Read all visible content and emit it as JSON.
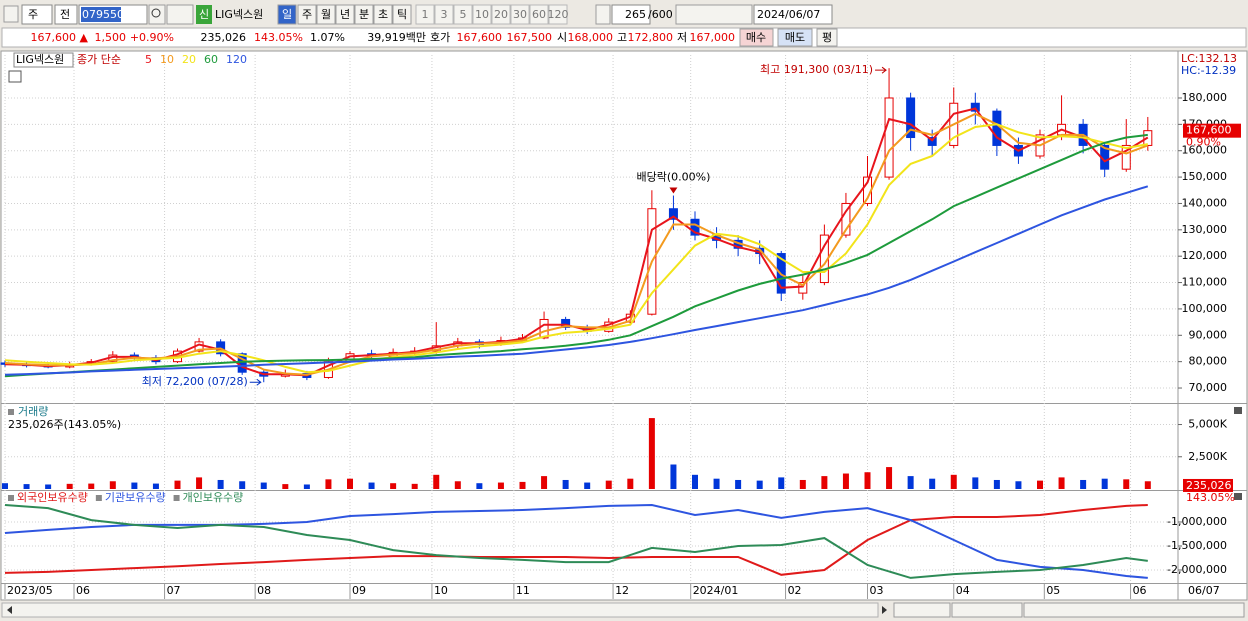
{
  "toolbar": {
    "period_type": "주",
    "prev": "전",
    "code": "079550",
    "new_badge": "신",
    "name": "LIG넥스원",
    "intervals": [
      "일",
      "주",
      "월",
      "년",
      "분",
      "초",
      "틱"
    ],
    "steps": [
      "1",
      "3",
      "5",
      "10",
      "20",
      "30",
      "60",
      "120"
    ],
    "count": "265",
    "max_count": "/600",
    "date": "2024/06/07"
  },
  "quote": {
    "price": "167,600 ▲",
    "change": "1,500",
    "change_pct": "+0.90%",
    "volume": "235,026",
    "volume_ratio": "143.05%",
    "turnover": "1.07%",
    "amount": "39,919백만",
    "bid_ask_label": "호가",
    "ask": "167,600",
    "bid": "167,500",
    "open_label": "시",
    "open": "168,000",
    "high_label": "고",
    "high": "172,800",
    "low_label": "저",
    "low": "167,000",
    "buy": "매수",
    "sell": "매도",
    "avg": "평"
  },
  "chart_data": [
    {
      "type": "candlestick",
      "title": "LIG넥스원",
      "legend_label": "종가 단순",
      "x": [
        0,
        5,
        10,
        15,
        20,
        25,
        30,
        35,
        40,
        45,
        50,
        55,
        60,
        65,
        70,
        75,
        80,
        85,
        90,
        95,
        100,
        105,
        110,
        115,
        120,
        125,
        130,
        135,
        140,
        145,
        150,
        155,
        160,
        165,
        170,
        175,
        180,
        185,
        190,
        195,
        200,
        205,
        210,
        215,
        220,
        225,
        230,
        235,
        240,
        245,
        250,
        255,
        260,
        265
      ],
      "open": [
        79500,
        79000,
        78500,
        78000,
        79000,
        80000,
        82500,
        81500,
        80000,
        84000,
        87500,
        83000,
        76000,
        74500,
        75500,
        74000,
        80000,
        83000,
        82000,
        83500,
        84000,
        86000,
        87500,
        86500,
        88000,
        89000,
        96000,
        93000,
        91500,
        95000,
        98000,
        138000,
        134000,
        128000,
        126000,
        123000,
        121000,
        106000,
        110000,
        128000,
        140000,
        150000,
        180000,
        165000,
        162000,
        178000,
        175000,
        162000,
        158000,
        166000,
        170000,
        162000,
        153000,
        162000
      ],
      "high": [
        80500,
        80000,
        79500,
        80000,
        81000,
        84000,
        83500,
        82500,
        85000,
        89000,
        88500,
        83500,
        77000,
        77000,
        76500,
        81500,
        84000,
        84500,
        85000,
        85500,
        95000,
        89000,
        88500,
        89500,
        90500,
        99000,
        97000,
        94000,
        96500,
        99500,
        145000,
        143000,
        137000,
        131000,
        128000,
        126000,
        122000,
        113000,
        132000,
        144000,
        158000,
        191300,
        182000,
        168000,
        184000,
        182000,
        176000,
        165000,
        168000,
        181000,
        172000,
        163000,
        172000,
        172800
      ],
      "low": [
        78000,
        77800,
        77500,
        77500,
        78500,
        79500,
        80500,
        79000,
        79500,
        83500,
        82000,
        75000,
        72200,
        74000,
        73000,
        73500,
        79500,
        81000,
        81500,
        82500,
        83000,
        85000,
        85000,
        86000,
        87500,
        88500,
        92000,
        90500,
        91000,
        94000,
        97500,
        130000,
        126000,
        123000,
        120000,
        117000,
        103000,
        103500,
        109000,
        127000,
        139000,
        149000,
        160000,
        158000,
        161000,
        170000,
        158000,
        155000,
        157000,
        164000,
        159000,
        150000,
        152000,
        160000
      ],
      "close": [
        79000,
        78500,
        78000,
        79000,
        80000,
        82500,
        81500,
        80000,
        84000,
        87500,
        83000,
        76000,
        74500,
        75500,
        74000,
        80000,
        83000,
        82000,
        83500,
        84000,
        86000,
        87500,
        86500,
        88000,
        89000,
        96000,
        93000,
        91500,
        95000,
        98000,
        138000,
        134000,
        128000,
        126000,
        123000,
        121000,
        106000,
        110000,
        128000,
        140000,
        150000,
        180000,
        165000,
        162000,
        178000,
        175000,
        162000,
        158000,
        166000,
        170000,
        162000,
        153000,
        162000,
        167600
      ],
      "up_color": "#e60000",
      "down_color": "#0036d9",
      "series": [
        {
          "name": "5",
          "color": "#e8141c",
          "values": [
            79000,
            78800,
            78300,
            78700,
            79600,
            81800,
            81800,
            80600,
            82800,
            86500,
            84500,
            78000,
            75200,
            75200,
            74800,
            78500,
            82000,
            82500,
            83000,
            83700,
            85500,
            87000,
            87000,
            87500,
            88700,
            94000,
            94000,
            92000,
            94000,
            97000,
            130000,
            135000,
            129000,
            126500,
            123500,
            121500,
            108000,
            108500,
            124000,
            137000,
            148000,
            172000,
            170000,
            164000,
            174000,
            176000,
            165000,
            160000,
            164000,
            168000,
            165000,
            156000,
            160000,
            165000
          ]
        },
        {
          "name": "10",
          "color": "#f39a1e",
          "values": [
            79500,
            79000,
            78700,
            78600,
            79000,
            80500,
            81500,
            81200,
            82000,
            84500,
            85000,
            81000,
            77000,
            75500,
            75000,
            77000,
            80000,
            82000,
            82700,
            83300,
            84500,
            86000,
            86800,
            87200,
            88000,
            91500,
            93500,
            93000,
            93000,
            95500,
            118000,
            132000,
            132000,
            128000,
            125000,
            122500,
            113000,
            109000,
            117000,
            130000,
            142000,
            160000,
            168000,
            166000,
            170000,
            174000,
            170000,
            163000,
            162000,
            166000,
            166000,
            161000,
            159000,
            162000
          ]
        },
        {
          "name": "20",
          "color": "#f2e41a",
          "values": [
            80500,
            80000,
            79500,
            79000,
            78900,
            79500,
            80500,
            81000,
            81500,
            83000,
            84000,
            82500,
            80500,
            78000,
            76000,
            76500,
            78500,
            80500,
            81800,
            82500,
            83500,
            84800,
            85800,
            86500,
            87300,
            89500,
            91000,
            91500,
            92500,
            94000,
            106000,
            115000,
            124000,
            128500,
            127500,
            124500,
            119000,
            114000,
            114000,
            121000,
            132000,
            147000,
            155000,
            158000,
            165000,
            169000,
            170000,
            167000,
            165000,
            165500,
            165000,
            163000,
            161000,
            162500
          ]
        },
        {
          "name": "60",
          "color": "#1e9b3c",
          "values": [
            74500,
            75000,
            75500,
            76000,
            76500,
            77000,
            77500,
            78000,
            78500,
            79000,
            79500,
            80000,
            80200,
            80400,
            80500,
            80600,
            80800,
            81000,
            81300,
            81700,
            82500,
            83000,
            83500,
            84000,
            84700,
            85300,
            86000,
            87000,
            88300,
            90000,
            93500,
            97000,
            101000,
            104000,
            107000,
            109500,
            111500,
            113000,
            115000,
            117500,
            120500,
            125000,
            129500,
            134000,
            139000,
            142500,
            146000,
            149500,
            153000,
            156500,
            160000,
            163000,
            165000,
            166000
          ]
        },
        {
          "name": "120",
          "color": "#2e55e0",
          "values": [
            75000,
            75300,
            75600,
            75900,
            76300,
            76600,
            76900,
            77200,
            77500,
            77800,
            78100,
            78400,
            78800,
            79100,
            79400,
            79700,
            80000,
            80400,
            80800,
            81100,
            81500,
            81900,
            82200,
            82600,
            83000,
            83800,
            84600,
            85400,
            86300,
            87500,
            88900,
            90400,
            92000,
            93500,
            95000,
            96500,
            98000,
            99500,
            101500,
            103500,
            105500,
            108000,
            111000,
            114500,
            118000,
            121500,
            125000,
            128500,
            132000,
            135500,
            138500,
            141500,
            144000,
            146500
          ]
        }
      ],
      "xlim": [
        0,
        272
      ],
      "ylim": [
        64700,
        196300
      ],
      "yticks": [
        {
          "value": 70000,
          "label": "70,000"
        },
        {
          "value": 80000,
          "label": "80,000"
        },
        {
          "value": 90000,
          "label": "90,000"
        },
        {
          "value": 100000,
          "label": "100,000"
        },
        {
          "value": 110000,
          "label": "110,000"
        },
        {
          "value": 120000,
          "label": "120,000"
        },
        {
          "value": 130000,
          "label": "130,000"
        },
        {
          "value": 140000,
          "label": "140,000"
        },
        {
          "value": 150000,
          "label": "150,000"
        },
        {
          "value": 160000,
          "label": "160,000"
        },
        {
          "value": 170000,
          "label": "170,000"
        },
        {
          "value": 180000,
          "label": "180,000"
        }
      ],
      "grid": true,
      "high_note": {
        "text": "최고 191,300 (03/11)",
        "x": 205,
        "y": 191300
      },
      "low_note": {
        "text": "최저 72,200 (07/28)",
        "x": 60,
        "y": 72200
      },
      "dividend_note": {
        "text": "배당락(0.00%)",
        "x": 155
      },
      "right_labels": [
        "LC:132.13",
        "HC:-12.39"
      ],
      "last_price": {
        "value": 167600,
        "label": "167,600"
      },
      "last_change": "0.90%"
    },
    {
      "type": "bar",
      "title": "거래량",
      "subtitle": "235,026주(143.05%)",
      "x": [
        0,
        5,
        10,
        15,
        20,
        25,
        30,
        35,
        40,
        45,
        50,
        55,
        60,
        65,
        70,
        75,
        80,
        85,
        90,
        95,
        100,
        105,
        110,
        115,
        120,
        125,
        130,
        135,
        140,
        145,
        150,
        155,
        160,
        165,
        170,
        175,
        180,
        185,
        190,
        195,
        200,
        205,
        210,
        215,
        220,
        225,
        230,
        235,
        240,
        245,
        250,
        255,
        260,
        265
      ],
      "values": [
        450000,
        380000,
        350000,
        400000,
        420000,
        600000,
        500000,
        420000,
        650000,
        900000,
        700000,
        600000,
        500000,
        380000,
        350000,
        750000,
        800000,
        500000,
        450000,
        400000,
        1100000,
        600000,
        450000,
        500000,
        550000,
        1000000,
        700000,
        500000,
        650000,
        800000,
        5500000,
        1900000,
        1100000,
        800000,
        700000,
        650000,
        900000,
        700000,
        1000000,
        1200000,
        1300000,
        1700000,
        1000000,
        800000,
        1100000,
        900000,
        700000,
        600000,
        650000,
        900000,
        700000,
        800000,
        750000,
        600000
      ],
      "xlim": [
        0,
        272
      ],
      "ylim": [
        0,
        6360000
      ],
      "yticks": [
        {
          "value": 2500000,
          "label": "2,500K"
        },
        {
          "value": 5000000,
          "label": "5,000K"
        }
      ],
      "grid": true,
      "last_value": {
        "value": 235026,
        "label": "235,026"
      },
      "last_ratio": "143.05%"
    },
    {
      "type": "line",
      "x": [
        0,
        10,
        20,
        30,
        40,
        50,
        60,
        70,
        80,
        90,
        100,
        110,
        120,
        130,
        140,
        150,
        160,
        170,
        180,
        190,
        200,
        210,
        220,
        230,
        240,
        250,
        260,
        265
      ],
      "series": [
        {
          "name": "외국인보유수량",
          "color": "#e01a1a",
          "values": [
            -2060000,
            -2040000,
            -2000000,
            -1960000,
            -1920000,
            -1875000,
            -1835000,
            -1790000,
            -1750000,
            -1710000,
            -1710000,
            -1730000,
            -1730000,
            -1730000,
            -1750000,
            -1730000,
            -1730000,
            -1730000,
            -2100000,
            -2000000,
            -1375000,
            -960000,
            -895000,
            -895000,
            -855000,
            -750000,
            -665000,
            -645000
          ]
        },
        {
          "name": "기관보유수량",
          "color": "#2e55e0",
          "values": [
            -1230000,
            -1165000,
            -1105000,
            -1060000,
            -1060000,
            -1060000,
            -1040000,
            -1000000,
            -875000,
            -835000,
            -790000,
            -770000,
            -750000,
            -710000,
            -665000,
            -645000,
            -855000,
            -750000,
            -915000,
            -790000,
            -710000,
            -960000,
            -1375000,
            -1790000,
            -1935000,
            -2000000,
            -2125000,
            -2165000
          ]
        },
        {
          "name": "개인보유수량",
          "color": "#2e8b57",
          "values": [
            -645000,
            -710000,
            -960000,
            -1060000,
            -1125000,
            -1060000,
            -1105000,
            -1270000,
            -1375000,
            -1585000,
            -1690000,
            -1750000,
            -1790000,
            -1835000,
            -1835000,
            -1540000,
            -1625000,
            -1500000,
            -1480000,
            -1335000,
            -1895000,
            -2165000,
            -2085000,
            -2040000,
            -2000000,
            -1895000,
            -1750000,
            -1810000
          ]
        }
      ],
      "xlim": [
        0,
        272
      ],
      "ylim": [
        -2250000,
        -416700
      ],
      "yticks": [
        {
          "value": -1000000,
          "label": "-1,000,000"
        },
        {
          "value": -1500000,
          "label": "-1,500,000"
        },
        {
          "value": -2000000,
          "label": "-2,000,000"
        }
      ],
      "xticks": [
        {
          "value": 0,
          "label": "2023/05"
        },
        {
          "value": 16,
          "label": "06"
        },
        {
          "value": 37,
          "label": "07"
        },
        {
          "value": 58,
          "label": "08"
        },
        {
          "value": 80,
          "label": "09"
        },
        {
          "value": 99,
          "label": "10"
        },
        {
          "value": 118,
          "label": "11"
        },
        {
          "value": 141,
          "label": "12"
        },
        {
          "value": 159,
          "label": "2024/01"
        },
        {
          "value": 181,
          "label": "02"
        },
        {
          "value": 200,
          "label": "03"
        },
        {
          "value": 220,
          "label": "04"
        },
        {
          "value": 241,
          "label": "05"
        },
        {
          "value": 261,
          "label": "06"
        }
      ],
      "grid": true,
      "last_date": "06/07"
    }
  ]
}
